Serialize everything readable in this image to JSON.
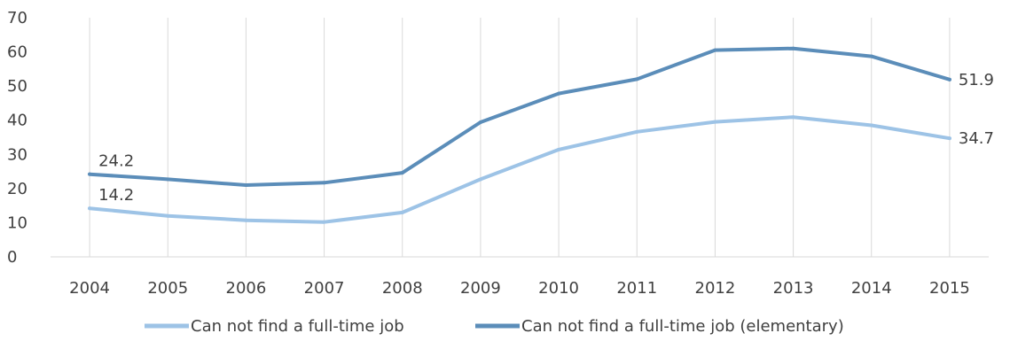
{
  "chart_data": {
    "type": "line",
    "title": "",
    "xlabel": "",
    "ylabel": "",
    "ylim": [
      0,
      70
    ],
    "yticks": [
      0,
      10,
      20,
      30,
      40,
      50,
      60,
      70
    ],
    "grid": "vertical",
    "legend_position": "bottom",
    "categories": [
      "2004",
      "2005",
      "2006",
      "2007",
      "2008",
      "2009",
      "2010",
      "2011",
      "2012",
      "2013",
      "2014",
      "2015"
    ],
    "series": [
      {
        "name": "Can not find a full-time job",
        "color": "#9dc3e6",
        "values": [
          14.2,
          12.0,
          10.7,
          10.2,
          13.0,
          22.7,
          31.4,
          36.6,
          39.5,
          40.9,
          38.5,
          34.7
        ],
        "labels": [
          {
            "index": 0,
            "text": "14.2"
          },
          {
            "index": 11,
            "text": "34.7"
          }
        ]
      },
      {
        "name": "Can not find a full-time job (elementary)",
        "color": "#5b8db9",
        "values": [
          24.2,
          22.7,
          21.0,
          21.7,
          24.6,
          39.4,
          47.8,
          52.0,
          60.5,
          61.0,
          58.7,
          51.9
        ],
        "labels": [
          {
            "index": 0,
            "text": "24.2"
          },
          {
            "index": 11,
            "text": "51.9"
          }
        ]
      }
    ]
  }
}
